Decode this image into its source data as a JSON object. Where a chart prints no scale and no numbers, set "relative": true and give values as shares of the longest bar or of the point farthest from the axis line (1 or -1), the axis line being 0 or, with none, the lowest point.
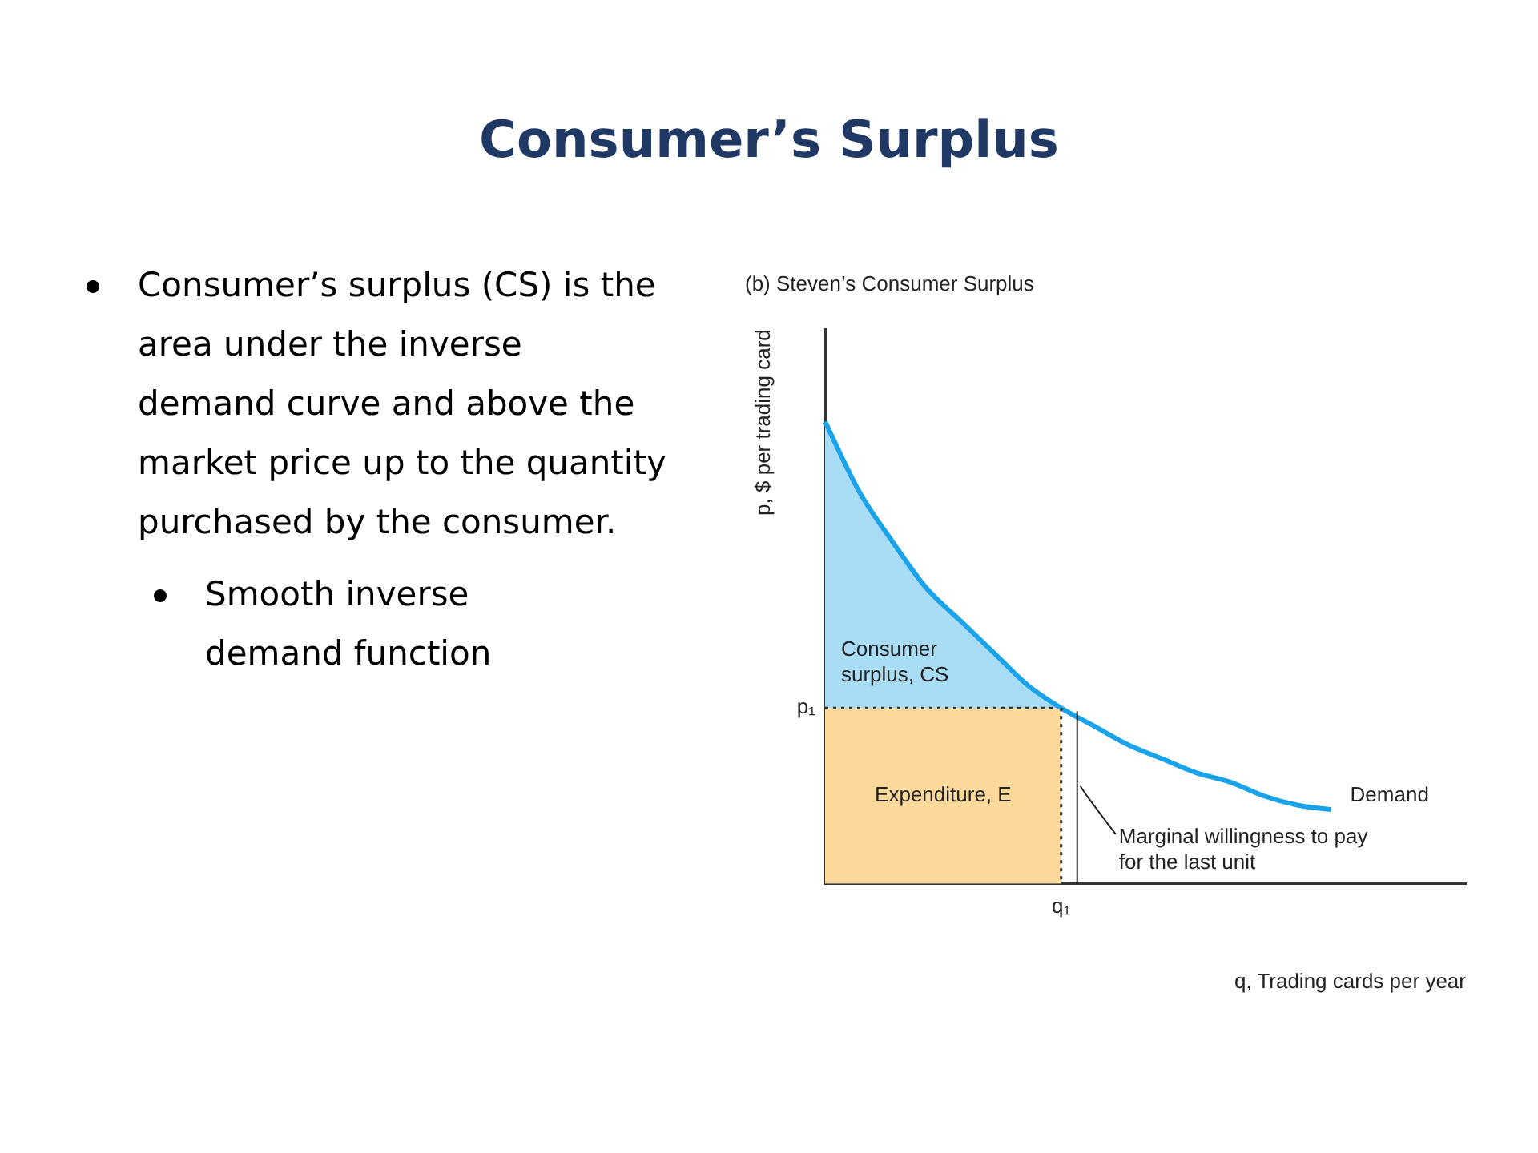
{
  "chart_data": {
    "type": "line",
    "title": "Consumer’s Surplus",
    "subtitle": "(b) Steven’s Consumer Surplus",
    "xlabel": "q, Trading cards per year",
    "ylabel": "p, $ per trading card",
    "relative": true,
    "categories": [
      null,
      null,
      null,
      null,
      null,
      null,
      null,
      null,
      null,
      null,
      null,
      null,
      null,
      null,
      null,
      null,
      null,
      null,
      null,
      null
    ],
    "series": [
      {
        "name": "Demand",
        "color": "#1aa3e8",
        "values": [
          1.0,
          0.85,
          0.74,
          0.64,
          0.57,
          0.5,
          0.43,
          0.38,
          0.34,
          0.3,
          0.27,
          0.24,
          0.22,
          0.19,
          0.17,
          0.16,
          null,
          null,
          null,
          null
        ]
      },
      {
        "name": "Consumer surplus, CS",
        "type": "area",
        "color": "#a9ddf5",
        "values": [
          1.0,
          0.85,
          0.74,
          0.64,
          0.57,
          0.5,
          0.43,
          0.38,
          null,
          null,
          null,
          null,
          null,
          null,
          null,
          null,
          null,
          null,
          null,
          null
        ]
      },
      {
        "name": "Expenditure, E",
        "type": "area",
        "color": "#fcd99b",
        "line_style": "dotted",
        "values": [
          0.38,
          0.38,
          0.38,
          0.38,
          0.38,
          0.38,
          0.38,
          0.38,
          null,
          null,
          null,
          null,
          null,
          null,
          null,
          null,
          null,
          null,
          null,
          null
        ]
      }
    ],
    "annotations": [
      "p₁",
      {
        "text": "Marginal willingness to pay for the last unit",
        "y": 0.19
      },
      "q₁",
      "Consumer’s surplus (CS) is the area under the inverse demand curve and above the market price up to the quantity purchased by the consumer.",
      "Smooth inverse demand function"
    ],
    "grid": false,
    "legend": false,
    "marker": "none",
    "line_style": "solid"
  }
}
